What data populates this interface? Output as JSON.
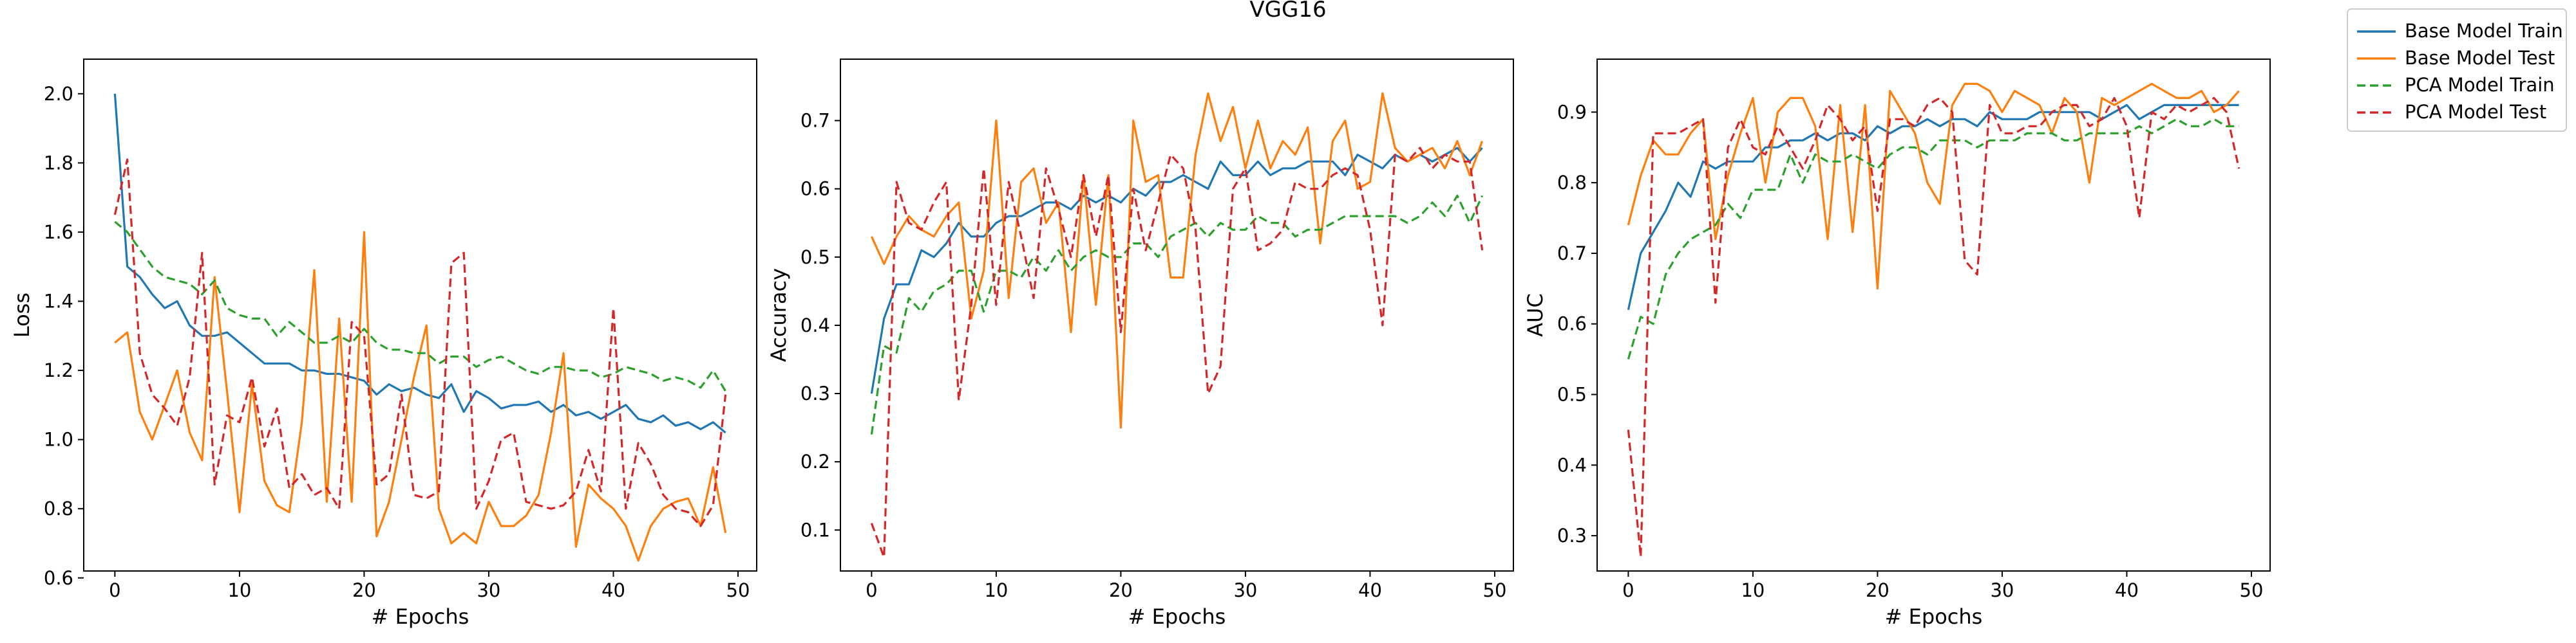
{
  "chart_data": {
    "title": "VGG16",
    "type": "line",
    "legend": {
      "placement": "outside-top-right",
      "entries": [
        {
          "label": "Base Model Train",
          "color": "#1f77b4",
          "dash": "solid"
        },
        {
          "label": "Base Model Test",
          "color": "#ff7f0e",
          "dash": "solid"
        },
        {
          "label": "PCA Model Train",
          "color": "#2ca02c",
          "dash": "dashed"
        },
        {
          "label": "PCA Model Test",
          "color": "#d62728",
          "dash": "dashed"
        }
      ]
    },
    "x": [
      0,
      1,
      2,
      3,
      4,
      5,
      6,
      7,
      8,
      9,
      10,
      11,
      12,
      13,
      14,
      15,
      16,
      17,
      18,
      19,
      20,
      21,
      22,
      23,
      24,
      25,
      26,
      27,
      28,
      29,
      30,
      31,
      32,
      33,
      34,
      35,
      36,
      37,
      38,
      39,
      40,
      41,
      42,
      43,
      44,
      45,
      46,
      47,
      48,
      49
    ],
    "panels": [
      {
        "xlabel": "# Epochs",
        "ylabel": "Loss",
        "xlim": [
          -2.5,
          51.5
        ],
        "ylim": [
          0.62,
          2.1
        ],
        "xticks": [
          0,
          10,
          20,
          30,
          40,
          50
        ],
        "yticks": [
          0.6,
          0.8,
          1.0,
          1.2,
          1.4,
          1.6,
          1.8,
          2.0
        ],
        "ytick_labels": [
          "0.6",
          "0.8",
          "1.0",
          "1.2",
          "1.4",
          "1.6",
          "1.8",
          "2.0"
        ],
        "grid": false,
        "series": [
          {
            "name": "Base Model Train",
            "values": [
              2.0,
              1.5,
              1.47,
              1.42,
              1.38,
              1.4,
              1.33,
              1.3,
              1.3,
              1.31,
              1.28,
              1.25,
              1.22,
              1.22,
              1.22,
              1.2,
              1.2,
              1.19,
              1.19,
              1.18,
              1.17,
              1.13,
              1.16,
              1.14,
              1.15,
              1.13,
              1.12,
              1.16,
              1.08,
              1.14,
              1.12,
              1.09,
              1.1,
              1.1,
              1.11,
              1.08,
              1.1,
              1.07,
              1.08,
              1.06,
              1.08,
              1.1,
              1.06,
              1.05,
              1.07,
              1.04,
              1.05,
              1.03,
              1.05,
              1.02
            ]
          },
          {
            "name": "Base Model Test",
            "values": [
              1.28,
              1.31,
              1.08,
              1.0,
              1.1,
              1.2,
              1.02,
              0.94,
              1.47,
              1.14,
              0.79,
              1.16,
              0.88,
              0.81,
              0.79,
              1.05,
              1.49,
              0.82,
              1.35,
              0.82,
              1.6,
              0.72,
              0.82,
              1.0,
              1.18,
              1.33,
              0.8,
              0.7,
              0.73,
              0.7,
              0.82,
              0.75,
              0.75,
              0.78,
              0.84,
              1.02,
              1.25,
              0.69,
              0.87,
              0.83,
              0.8,
              0.75,
              0.65,
              0.75,
              0.8,
              0.82,
              0.83,
              0.75,
              0.92,
              0.73
            ]
          },
          {
            "name": "PCA Model Train",
            "values": [
              1.63,
              1.6,
              1.55,
              1.5,
              1.47,
              1.46,
              1.45,
              1.42,
              1.46,
              1.38,
              1.36,
              1.35,
              1.35,
              1.3,
              1.34,
              1.31,
              1.28,
              1.28,
              1.3,
              1.28,
              1.32,
              1.28,
              1.26,
              1.26,
              1.25,
              1.25,
              1.22,
              1.24,
              1.24,
              1.21,
              1.23,
              1.24,
              1.22,
              1.2,
              1.19,
              1.21,
              1.21,
              1.2,
              1.2,
              1.18,
              1.19,
              1.21,
              1.2,
              1.19,
              1.17,
              1.18,
              1.17,
              1.15,
              1.2,
              1.14
            ]
          },
          {
            "name": "PCA Model Test",
            "values": [
              1.65,
              1.81,
              1.25,
              1.13,
              1.09,
              1.04,
              1.18,
              1.54,
              0.87,
              1.07,
              1.05,
              1.18,
              0.98,
              1.09,
              0.86,
              0.9,
              0.84,
              0.86,
              0.8,
              1.34,
              1.3,
              0.87,
              0.9,
              1.13,
              0.84,
              0.83,
              0.85,
              1.51,
              1.54,
              0.8,
              0.88,
              1.0,
              1.02,
              0.82,
              0.81,
              0.8,
              0.81,
              0.85,
              0.97,
              0.85,
              1.38,
              0.8,
              0.99,
              0.93,
              0.84,
              0.8,
              0.79,
              0.75,
              0.81,
              1.13
            ]
          }
        ]
      },
      {
        "xlabel": "# Epochs",
        "ylabel": "Accuracy",
        "xlim": [
          -2.5,
          51.5
        ],
        "ylim": [
          0.04,
          0.79
        ],
        "xticks": [
          0,
          10,
          20,
          30,
          40,
          50
        ],
        "yticks": [
          0.1,
          0.2,
          0.3,
          0.4,
          0.5,
          0.6,
          0.7
        ],
        "ytick_labels": [
          "0.1",
          "0.2",
          "0.3",
          "0.4",
          "0.5",
          "0.6",
          "0.7"
        ],
        "grid": false,
        "series": [
          {
            "name": "Base Model Train",
            "values": [
              0.3,
              0.41,
              0.46,
              0.46,
              0.51,
              0.5,
              0.52,
              0.55,
              0.53,
              0.53,
              0.55,
              0.56,
              0.56,
              0.57,
              0.58,
              0.58,
              0.57,
              0.59,
              0.58,
              0.59,
              0.58,
              0.6,
              0.59,
              0.61,
              0.61,
              0.62,
              0.61,
              0.6,
              0.64,
              0.62,
              0.62,
              0.64,
              0.62,
              0.63,
              0.63,
              0.64,
              0.64,
              0.64,
              0.62,
              0.65,
              0.64,
              0.63,
              0.65,
              0.64,
              0.65,
              0.64,
              0.65,
              0.66,
              0.64,
              0.66
            ]
          },
          {
            "name": "Base Model Test",
            "values": [
              0.53,
              0.49,
              0.53,
              0.56,
              0.54,
              0.53,
              0.56,
              0.58,
              0.41,
              0.48,
              0.7,
              0.44,
              0.61,
              0.63,
              0.55,
              0.58,
              0.39,
              0.62,
              0.43,
              0.62,
              0.25,
              0.7,
              0.61,
              0.62,
              0.47,
              0.47,
              0.65,
              0.74,
              0.67,
              0.72,
              0.63,
              0.7,
              0.63,
              0.67,
              0.65,
              0.69,
              0.52,
              0.67,
              0.7,
              0.6,
              0.61,
              0.74,
              0.66,
              0.64,
              0.65,
              0.66,
              0.63,
              0.67,
              0.62,
              0.67
            ]
          },
          {
            "name": "PCA Model Train",
            "values": [
              0.24,
              0.37,
              0.36,
              0.44,
              0.42,
              0.45,
              0.46,
              0.48,
              0.48,
              0.42,
              0.48,
              0.48,
              0.47,
              0.5,
              0.48,
              0.51,
              0.48,
              0.5,
              0.51,
              0.5,
              0.5,
              0.52,
              0.52,
              0.5,
              0.53,
              0.54,
              0.55,
              0.53,
              0.55,
              0.54,
              0.54,
              0.56,
              0.55,
              0.55,
              0.53,
              0.54,
              0.54,
              0.55,
              0.56,
              0.56,
              0.56,
              0.56,
              0.56,
              0.55,
              0.56,
              0.58,
              0.56,
              0.59,
              0.55,
              0.59
            ]
          },
          {
            "name": "PCA Model Test",
            "values": [
              0.11,
              0.06,
              0.61,
              0.55,
              0.54,
              0.58,
              0.61,
              0.29,
              0.43,
              0.63,
              0.43,
              0.61,
              0.53,
              0.44,
              0.63,
              0.57,
              0.5,
              0.62,
              0.53,
              0.62,
              0.39,
              0.6,
              0.51,
              0.58,
              0.65,
              0.63,
              0.54,
              0.3,
              0.34,
              0.6,
              0.63,
              0.51,
              0.52,
              0.54,
              0.61,
              0.6,
              0.6,
              0.62,
              0.63,
              0.62,
              0.54,
              0.4,
              0.65,
              0.64,
              0.66,
              0.63,
              0.65,
              0.64,
              0.64,
              0.51
            ]
          }
        ]
      },
      {
        "xlabel": "# Epochs",
        "ylabel": "AUC",
        "xlim": [
          -2.5,
          51.5
        ],
        "ylim": [
          0.25,
          0.975
        ],
        "xticks": [
          0,
          10,
          20,
          30,
          40,
          50
        ],
        "yticks": [
          0.3,
          0.4,
          0.5,
          0.6,
          0.7,
          0.8,
          0.9
        ],
        "ytick_labels": [
          "0.3",
          "0.4",
          "0.5",
          "0.6",
          "0.7",
          "0.8",
          "0.9"
        ],
        "grid": false,
        "series": [
          {
            "name": "Base Model Train",
            "values": [
              0.62,
              0.7,
              0.73,
              0.76,
              0.8,
              0.78,
              0.83,
              0.82,
              0.83,
              0.83,
              0.83,
              0.85,
              0.85,
              0.86,
              0.86,
              0.87,
              0.86,
              0.87,
              0.87,
              0.86,
              0.88,
              0.87,
              0.88,
              0.88,
              0.89,
              0.88,
              0.89,
              0.89,
              0.88,
              0.9,
              0.89,
              0.89,
              0.89,
              0.9,
              0.9,
              0.9,
              0.9,
              0.9,
              0.89,
              0.9,
              0.91,
              0.89,
              0.9,
              0.91,
              0.91,
              0.91,
              0.91,
              0.91,
              0.91,
              0.91
            ]
          },
          {
            "name": "Base Model Test",
            "values": [
              0.74,
              0.81,
              0.86,
              0.84,
              0.84,
              0.87,
              0.89,
              0.72,
              0.81,
              0.87,
              0.92,
              0.8,
              0.9,
              0.92,
              0.92,
              0.88,
              0.72,
              0.91,
              0.73,
              0.91,
              0.65,
              0.93,
              0.9,
              0.87,
              0.8,
              0.77,
              0.91,
              0.94,
              0.94,
              0.93,
              0.9,
              0.93,
              0.92,
              0.91,
              0.87,
              0.92,
              0.9,
              0.8,
              0.92,
              0.91,
              0.92,
              0.93,
              0.94,
              0.93,
              0.92,
              0.92,
              0.93,
              0.9,
              0.91,
              0.93
            ]
          },
          {
            "name": "PCA Model Train",
            "values": [
              0.55,
              0.61,
              0.6,
              0.67,
              0.7,
              0.72,
              0.73,
              0.74,
              0.77,
              0.75,
              0.79,
              0.79,
              0.79,
              0.84,
              0.8,
              0.84,
              0.83,
              0.83,
              0.84,
              0.83,
              0.82,
              0.84,
              0.85,
              0.85,
              0.84,
              0.86,
              0.86,
              0.86,
              0.85,
              0.86,
              0.86,
              0.86,
              0.87,
              0.87,
              0.87,
              0.86,
              0.86,
              0.87,
              0.87,
              0.87,
              0.87,
              0.88,
              0.87,
              0.88,
              0.89,
              0.88,
              0.88,
              0.89,
              0.88,
              0.88
            ]
          },
          {
            "name": "PCA Model Test",
            "values": [
              0.45,
              0.27,
              0.87,
              0.87,
              0.87,
              0.88,
              0.89,
              0.63,
              0.85,
              0.89,
              0.85,
              0.84,
              0.88,
              0.85,
              0.82,
              0.86,
              0.91,
              0.89,
              0.86,
              0.88,
              0.76,
              0.89,
              0.89,
              0.88,
              0.91,
              0.92,
              0.9,
              0.69,
              0.67,
              0.91,
              0.87,
              0.87,
              0.88,
              0.88,
              0.9,
              0.91,
              0.91,
              0.88,
              0.89,
              0.92,
              0.88,
              0.75,
              0.9,
              0.89,
              0.91,
              0.9,
              0.91,
              0.92,
              0.9,
              0.82
            ]
          }
        ]
      }
    ]
  }
}
